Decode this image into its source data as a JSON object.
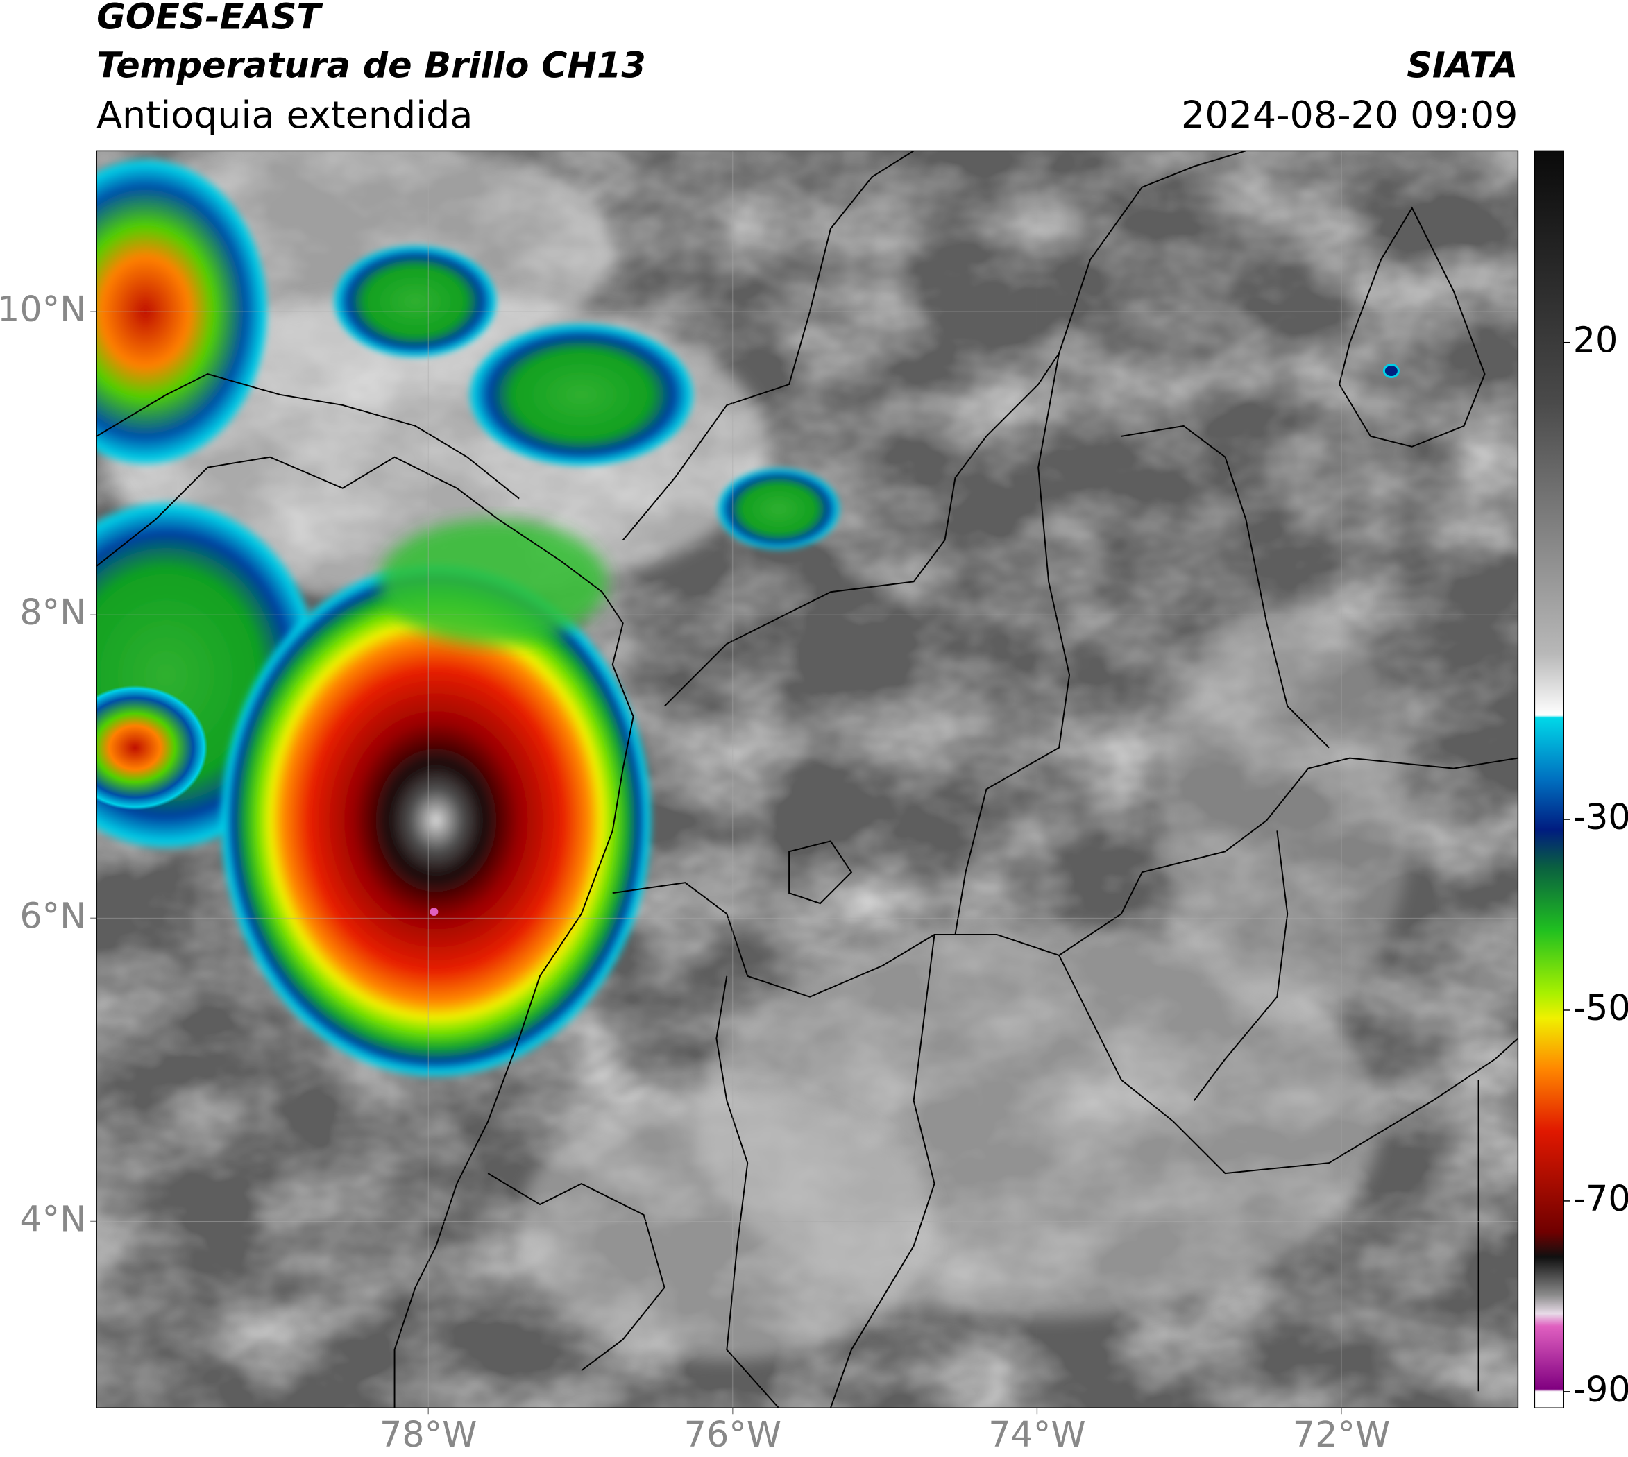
{
  "header": {
    "satellite": "GOES-EAST",
    "product": "Temperatura de Brillo CH13",
    "region": "Antioquia extendida",
    "agency": "SIATA",
    "timestamp": "2024-08-20 09:09"
  },
  "map": {
    "lonlim": [
      -80.18,
      -70.84
    ],
    "latlim": [
      2.77,
      11.06
    ],
    "lonticks": [
      {
        "value": -78,
        "label": "78°W"
      },
      {
        "value": -76,
        "label": "76°W"
      },
      {
        "value": -74,
        "label": "74°W"
      },
      {
        "value": -72,
        "label": "72°W"
      }
    ],
    "latticks": [
      {
        "value": 4,
        "label": "4°N"
      },
      {
        "value": 6,
        "label": "6°N"
      },
      {
        "value": 8,
        "label": "8°N"
      },
      {
        "value": 10,
        "label": "10°N"
      }
    ],
    "grid": true
  },
  "colorbar": {
    "lim": [
      -91.7,
      40.1
    ],
    "ticks": [
      20,
      -30,
      -50,
      -70,
      -90
    ]
  }
}
